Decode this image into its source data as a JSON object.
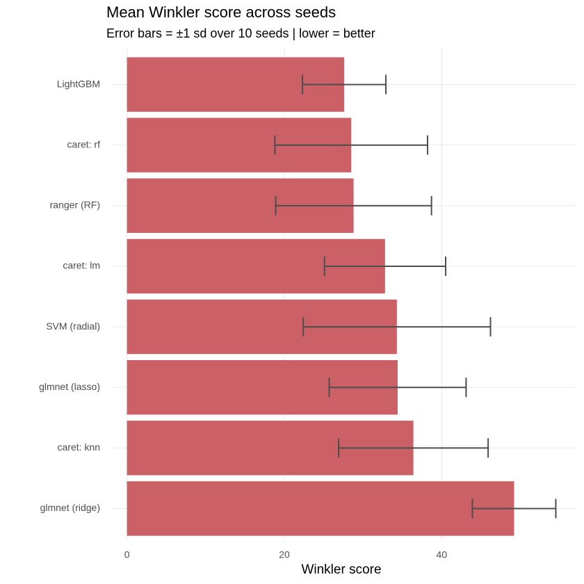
{
  "chart_data": {
    "type": "bar",
    "orientation": "horizontal",
    "title": "Mean Winkler score across seeds",
    "subtitle": "Error bars = ±1 sd over 10 seeds | lower = better",
    "x_label": "Winkler score",
    "categories": [
      "LightGBM",
      "caret: rf",
      "ranger (RF)",
      "caret: lm",
      "SVM (radial)",
      "glmnet (lasso)",
      "caret: knn",
      "glmnet (ridge)"
    ],
    "values": [
      27.6,
      28.5,
      28.8,
      32.8,
      34.3,
      34.4,
      36.4,
      49.2
    ],
    "errors": [
      5.3,
      9.7,
      9.9,
      7.7,
      11.9,
      8.7,
      9.5,
      5.3
    ],
    "color": "#cb6166",
    "error_color": "#4d4d4d",
    "xlim": [
      -2.0,
      57.2
    ],
    "xticks": [
      0,
      20,
      40
    ],
    "grid": true
  }
}
